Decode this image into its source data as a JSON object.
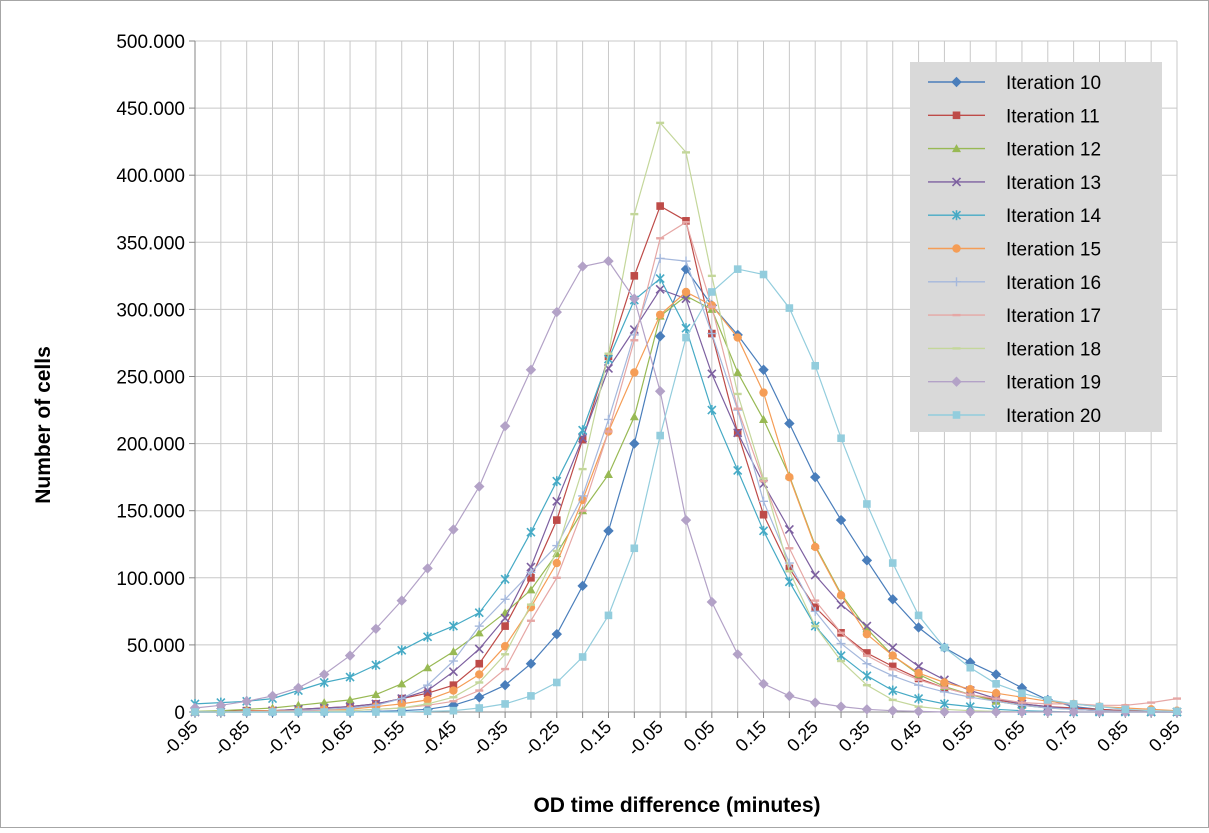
{
  "chart_data": {
    "type": "line",
    "title": "",
    "xlabel": "OD time difference (minutes)",
    "ylabel": "Number of cells",
    "ylim": [
      0,
      500000
    ],
    "ytick_step": 50000,
    "y_tick_labels": [
      "0",
      "50.000",
      "100.000",
      "150.000",
      "200.000",
      "250.000",
      "300.000",
      "350.000",
      "400.000",
      "450.000",
      "500.000"
    ],
    "x": [
      -0.95,
      -0.9,
      -0.85,
      -0.8,
      -0.75,
      -0.7,
      -0.65,
      -0.6,
      -0.55,
      -0.5,
      -0.45,
      -0.4,
      -0.35,
      -0.3,
      -0.25,
      -0.2,
      -0.15,
      -0.1,
      -0.05,
      0,
      0.05,
      0.1,
      0.15,
      0.2,
      0.25,
      0.3,
      0.35,
      0.4,
      0.45,
      0.5,
      0.55,
      0.6,
      0.65,
      0.7,
      0.75,
      0.8,
      0.85,
      0.9,
      0.95
    ],
    "x_tick_labels": [
      "-0.95",
      "-0.85",
      "-0.75",
      "-0.65",
      "-0.55",
      "-0.45",
      "-0.35",
      "-0.25",
      "-0.15",
      "-0.05",
      "0.05",
      "0.15",
      "0.25",
      "0.35",
      "0.45",
      "0.55",
      "0.65",
      "0.75",
      "0.85",
      "0.95"
    ],
    "grid": true,
    "legend_position": "top-right",
    "series": [
      {
        "name": "Iteration 10",
        "color": "#4a7ebb",
        "marker": "diamond",
        "values": [
          0,
          0,
          0,
          0,
          0,
          0,
          0,
          500,
          1000,
          2000,
          5000,
          11000,
          20000,
          36000,
          58000,
          94000,
          135000,
          200000,
          280000,
          330000,
          303000,
          281000,
          255000,
          215000,
          175000,
          143000,
          113000,
          84000,
          63000,
          48000,
          37000,
          28000,
          18000,
          9000,
          4000,
          2000,
          1000,
          500,
          0
        ]
      },
      {
        "name": "Iteration 11",
        "color": "#be4b48",
        "marker": "square",
        "values": [
          0,
          500,
          1000,
          1000,
          2000,
          3000,
          4000,
          6000,
          10000,
          14000,
          20000,
          36000,
          64000,
          100000,
          143000,
          203000,
          265000,
          325000,
          377000,
          366000,
          282000,
          208000,
          147000,
          107000,
          78000,
          59000,
          44000,
          34000,
          25000,
          18000,
          13000,
          9000,
          6000,
          4000,
          3000,
          2000,
          1000,
          500,
          0
        ]
      },
      {
        "name": "Iteration 12",
        "color": "#98b954",
        "marker": "triangle",
        "values": [
          500,
          1000,
          2000,
          3000,
          5000,
          7000,
          9000,
          13000,
          21000,
          33000,
          45000,
          59000,
          74000,
          91000,
          118000,
          150000,
          177000,
          220000,
          295000,
          310000,
          300000,
          253000,
          218000,
          176000,
          124000,
          88000,
          62000,
          42000,
          28000,
          19000,
          13000,
          8000,
          5000,
          3000,
          2000,
          1000,
          500,
          0,
          0
        ]
      },
      {
        "name": "Iteration 13",
        "color": "#7d60a0",
        "marker": "x",
        "values": [
          0,
          0,
          500,
          1000,
          2000,
          3000,
          4000,
          6000,
          10000,
          16000,
          30000,
          47000,
          70000,
          108000,
          157000,
          204000,
          256000,
          285000,
          315000,
          308000,
          252000,
          208000,
          170000,
          136000,
          102000,
          80000,
          64000,
          48000,
          34000,
          24000,
          16000,
          10000,
          6000,
          4000,
          2000,
          1000,
          500,
          0,
          0
        ]
      },
      {
        "name": "Iteration 14",
        "color": "#46aac5",
        "marker": "star",
        "values": [
          6000,
          7000,
          8000,
          10000,
          16000,
          22000,
          26000,
          35000,
          46000,
          56000,
          64000,
          74000,
          99000,
          134000,
          172000,
          210000,
          263000,
          307000,
          323000,
          286000,
          225000,
          180000,
          135000,
          97000,
          64000,
          42000,
          27000,
          16000,
          10000,
          6000,
          4000,
          2000,
          1000,
          500,
          0,
          0,
          0,
          0,
          0
        ]
      },
      {
        "name": "Iteration 15",
        "color": "#f59d56",
        "marker": "circle",
        "values": [
          0,
          0,
          500,
          1000,
          1000,
          2000,
          2000,
          4000,
          6000,
          9000,
          16000,
          28000,
          49000,
          78000,
          111000,
          158000,
          209000,
          253000,
          296000,
          313000,
          303000,
          279000,
          238000,
          175000,
          123000,
          87000,
          58000,
          42000,
          29000,
          22000,
          17000,
          14000,
          11000,
          8000,
          6000,
          4000,
          3000,
          2000,
          1000
        ]
      },
      {
        "name": "Iteration 16",
        "color": "#a5b8dc",
        "marker": "plus",
        "values": [
          0,
          0,
          0,
          500,
          1000,
          2000,
          3000,
          5000,
          10000,
          20000,
          38000,
          64000,
          84000,
          104000,
          124000,
          161000,
          218000,
          281000,
          338000,
          336000,
          282000,
          225000,
          157000,
          111000,
          75000,
          51000,
          36000,
          27000,
          20000,
          15000,
          11000,
          8000,
          5000,
          3000,
          2000,
          1000,
          500,
          0,
          0
        ]
      },
      {
        "name": "Iteration 17",
        "color": "#e6a7a5",
        "marker": "dash",
        "values": [
          0,
          0,
          0,
          500,
          500,
          1000,
          1000,
          2000,
          3000,
          5000,
          8000,
          16000,
          32000,
          68000,
          100000,
          150000,
          209000,
          277000,
          353000,
          365000,
          302000,
          226000,
          172000,
          122000,
          83000,
          59000,
          42000,
          32000,
          24000,
          18000,
          13000,
          10000,
          7000,
          6000,
          6000,
          5000,
          5000,
          7000,
          10000
        ]
      },
      {
        "name": "Iteration 18",
        "color": "#c4d79b",
        "marker": "dash",
        "values": [
          0,
          0,
          0,
          0,
          0,
          500,
          1000,
          2000,
          3000,
          6000,
          11000,
          22000,
          43000,
          80000,
          120000,
          181000,
          267000,
          371000,
          439000,
          417000,
          325000,
          237000,
          174000,
          105000,
          64000,
          38000,
          20000,
          9000,
          4000,
          2000,
          1000,
          500,
          0,
          0,
          0,
          0,
          0,
          0,
          0
        ]
      },
      {
        "name": "Iteration 19",
        "color": "#b3a2c7",
        "marker": "diamond",
        "values": [
          3000,
          5000,
          8000,
          12000,
          18000,
          28000,
          42000,
          62000,
          83000,
          107000,
          136000,
          168000,
          213000,
          255000,
          298000,
          332000,
          336000,
          308000,
          239000,
          143000,
          82000,
          43000,
          21000,
          12000,
          7000,
          4000,
          2000,
          1000,
          500,
          0,
          0,
          0,
          0,
          0,
          0,
          0,
          0,
          0,
          0
        ]
      },
      {
        "name": "Iteration 20",
        "color": "#93cddd",
        "marker": "square",
        "values": [
          0,
          0,
          0,
          0,
          0,
          0,
          0,
          0,
          0,
          500,
          1000,
          3000,
          6000,
          12000,
          22000,
          41000,
          72000,
          122000,
          206000,
          279000,
          313000,
          330000,
          326000,
          301000,
          258000,
          204000,
          155000,
          111000,
          72000,
          48000,
          33000,
          21000,
          14000,
          9000,
          6000,
          4000,
          2000,
          1000,
          500
        ]
      }
    ]
  }
}
